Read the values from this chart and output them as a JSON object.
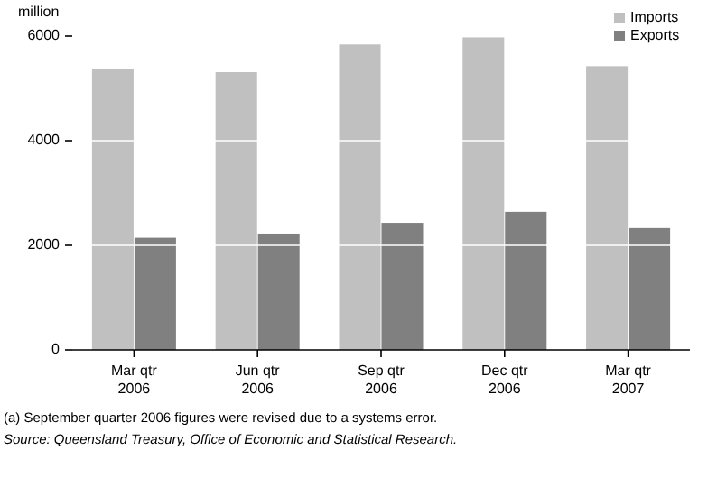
{
  "chart_data": {
    "type": "bar",
    "ylabel": "million",
    "categories": [
      "Mar qtr\n2006",
      "Jun qtr\n2006",
      "Sep qtr\n2006",
      "Dec qtr\n2006",
      "Mar qtr\n2007"
    ],
    "series": [
      {
        "name": "Imports",
        "color": "#c0c0c0",
        "values": [
          5380,
          5310,
          5840,
          5975,
          5425
        ]
      },
      {
        "name": "Exports",
        "color": "#808080",
        "values": [
          2145,
          2225,
          2430,
          2640,
          2330
        ]
      }
    ],
    "ylim": [
      0,
      6000
    ],
    "yticks": [
      0,
      2000,
      4000,
      6000
    ],
    "grid": "y",
    "legend": "top right",
    "annotations": [
      "(a) September quarter 2006 figures were revised due to a systems error.",
      "Source: Queensland Treasury, Office of Economic and Statistical Research."
    ]
  }
}
